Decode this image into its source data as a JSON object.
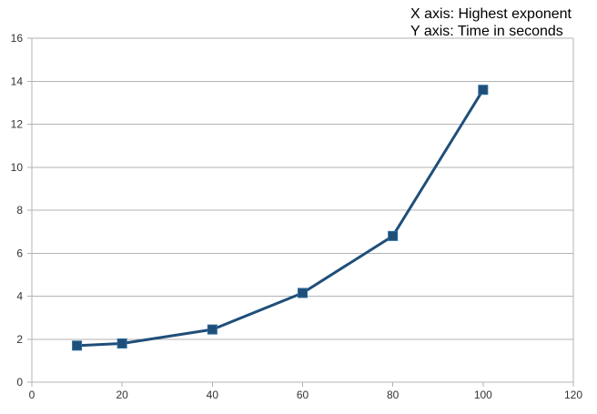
{
  "chart_data": {
    "type": "line",
    "title": "",
    "annotations": [
      "X axis: Highest exponent",
      "Y axis: Time in seconds"
    ],
    "xlabel": "",
    "ylabel": "",
    "xlim": [
      0,
      120
    ],
    "ylim": [
      0,
      16
    ],
    "x_ticks": [
      0,
      20,
      40,
      60,
      80,
      100,
      120
    ],
    "y_ticks": [
      0,
      2,
      4,
      6,
      8,
      10,
      12,
      14,
      16
    ],
    "grid": true,
    "legend": "none",
    "series": [
      {
        "color": "#1F4E79",
        "marker": "square",
        "x": [
          10,
          20,
          40,
          60,
          80,
          100
        ],
        "y": [
          1.7,
          1.8,
          2.45,
          4.15,
          6.8,
          13.6
        ]
      }
    ]
  }
}
